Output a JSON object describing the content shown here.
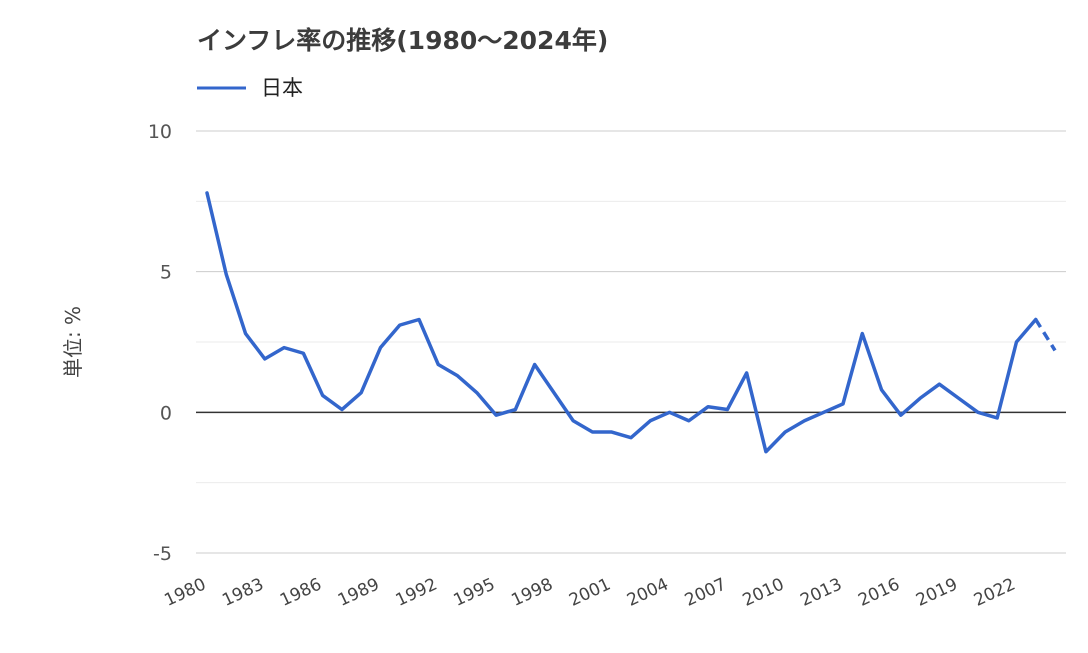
{
  "chart_data": {
    "type": "line",
    "title": "インフレ率の推移(1980〜2024年)",
    "ylabel": "単位: %",
    "xlabel": "",
    "ylim": [
      -5,
      10
    ],
    "yticks": [
      10,
      5,
      0,
      -5
    ],
    "grid": true,
    "legend_position": "top-left",
    "x": [
      1980,
      1981,
      1982,
      1983,
      1984,
      1985,
      1986,
      1987,
      1988,
      1989,
      1990,
      1991,
      1992,
      1993,
      1994,
      1995,
      1996,
      1997,
      1998,
      1999,
      2000,
      2001,
      2002,
      2003,
      2004,
      2005,
      2006,
      2007,
      2008,
      2009,
      2010,
      2011,
      2012,
      2013,
      2014,
      2015,
      2016,
      2017,
      2018,
      2019,
      2020,
      2021,
      2022,
      2023,
      2024
    ],
    "xtick_labels": [
      "1980",
      "1983",
      "1986",
      "1989",
      "1992",
      "1995",
      "1998",
      "2001",
      "2004",
      "2007",
      "2010",
      "2013",
      "2016",
      "2019",
      "2022"
    ],
    "series": [
      {
        "name": "日本",
        "color": "#3366cc",
        "values": [
          7.8,
          4.9,
          2.8,
          1.9,
          2.3,
          2.1,
          0.6,
          0.1,
          0.7,
          2.3,
          3.1,
          3.3,
          1.7,
          1.3,
          0.7,
          -0.1,
          0.1,
          1.7,
          0.7,
          -0.3,
          -0.7,
          -0.7,
          -0.9,
          -0.3,
          0.0,
          -0.3,
          0.2,
          0.1,
          1.4,
          -1.4,
          -0.7,
          -0.3,
          0.0,
          0.3,
          2.8,
          0.8,
          -0.1,
          0.5,
          1.0,
          0.5,
          0.0,
          -0.2,
          2.5,
          3.3,
          2.2
        ],
        "dashed_from": 2023
      }
    ]
  }
}
